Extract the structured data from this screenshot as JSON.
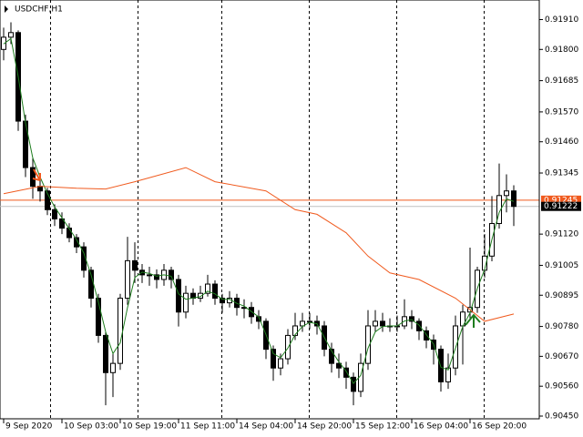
{
  "chart_data": {
    "type": "candlestick",
    "title": "USDCHF,H1",
    "ylim": [
      0.9044,
      0.91982
    ],
    "xlim": [
      -0.5,
      73.5
    ],
    "yticks": [
      {
        "value": 0.9191,
        "label": "0.91910"
      },
      {
        "value": 0.918,
        "label": "0.91800"
      },
      {
        "value": 0.91685,
        "label": "0.91685"
      },
      {
        "value": 0.9157,
        "label": "0.91570"
      },
      {
        "value": 0.9146,
        "label": "0.91460"
      },
      {
        "value": 0.91345,
        "label": "0.91345"
      },
      {
        "value": 0.9112,
        "label": "0.91120"
      },
      {
        "value": 0.91005,
        "label": "0.91005"
      },
      {
        "value": 0.90895,
        "label": "0.90895"
      },
      {
        "value": 0.9078,
        "label": "0.90780"
      },
      {
        "value": 0.9067,
        "label": "0.90670"
      },
      {
        "value": 0.9056,
        "label": "0.90560"
      },
      {
        "value": 0.9045,
        "label": "0.90450"
      }
    ],
    "xticks": [
      {
        "value": 0,
        "label": "9 Sep 2020"
      },
      {
        "value": 8,
        "label": "10 Sep 03:00"
      },
      {
        "value": 16,
        "label": "10 Sep 19:00"
      },
      {
        "value": 24,
        "label": "11 Sep 11:00"
      },
      {
        "value": 32,
        "label": "14 Sep 04:00"
      },
      {
        "value": 40,
        "label": "14 Sep 20:00"
      },
      {
        "value": 48,
        "label": "15 Sep 12:00"
      },
      {
        "value": 56,
        "label": "16 Sep 04:00"
      },
      {
        "value": 64,
        "label": "16 Sep 20:00"
      }
    ],
    "price_lines": [
      {
        "value": 0.91245,
        "color": "#f05a1e"
      },
      {
        "value": 0.91222,
        "color": "#c0c0c0"
      }
    ],
    "ohlc": [
      [
        0.918,
        0.9188,
        0.9176,
        0.91845
      ],
      [
        0.91845,
        0.919,
        0.9182,
        0.91862
      ],
      [
        0.91862,
        0.9187,
        0.915,
        0.91536
      ],
      [
        0.91536,
        0.9156,
        0.9133,
        0.91365
      ],
      [
        0.91365,
        0.914,
        0.9125,
        0.91296
      ],
      [
        0.91296,
        0.9133,
        0.9124,
        0.91279
      ],
      [
        0.91279,
        0.9129,
        0.9119,
        0.9121
      ],
      [
        0.9121,
        0.9123,
        0.9115,
        0.91176
      ],
      [
        0.91176,
        0.912,
        0.9112,
        0.91142
      ],
      [
        0.91142,
        0.9116,
        0.9109,
        0.91107
      ],
      [
        0.91107,
        0.9112,
        0.9105,
        0.91073
      ],
      [
        0.91073,
        0.9109,
        0.9096,
        0.90987
      ],
      [
        0.90987,
        0.91,
        0.9085,
        0.90884
      ],
      [
        0.90884,
        0.909,
        0.9072,
        0.90747
      ],
      [
        0.90747,
        0.9076,
        0.9049,
        0.9061
      ],
      [
        0.9061,
        0.9068,
        0.9052,
        0.90644
      ],
      [
        0.90644,
        0.909,
        0.9062,
        0.90884
      ],
      [
        0.90884,
        0.9111,
        0.9086,
        0.91022
      ],
      [
        0.91022,
        0.9109,
        0.9094,
        0.90987
      ],
      [
        0.90987,
        0.9101,
        0.9094,
        0.9097
      ],
      [
        0.9097,
        0.91,
        0.9093,
        0.9097
      ],
      [
        0.9097,
        0.9099,
        0.9092,
        0.90953
      ],
      [
        0.90953,
        0.9101,
        0.9093,
        0.90987
      ],
      [
        0.90987,
        0.91,
        0.9092,
        0.90953
      ],
      [
        0.90953,
        0.9097,
        0.9078,
        0.90833
      ],
      [
        0.90833,
        0.9093,
        0.9081,
        0.90902
      ],
      [
        0.90902,
        0.9092,
        0.9086,
        0.90884
      ],
      [
        0.90884,
        0.9093,
        0.9087,
        0.90902
      ],
      [
        0.90902,
        0.9097,
        0.9089,
        0.90936
      ],
      [
        0.90936,
        0.9095,
        0.9086,
        0.90884
      ],
      [
        0.90884,
        0.909,
        0.9083,
        0.90867
      ],
      [
        0.90867,
        0.9091,
        0.9085,
        0.90884
      ],
      [
        0.90884,
        0.909,
        0.9082,
        0.9085
      ],
      [
        0.9085,
        0.9088,
        0.9081,
        0.9085
      ],
      [
        0.9085,
        0.9087,
        0.9079,
        0.90816
      ],
      [
        0.90816,
        0.9084,
        0.9077,
        0.90799
      ],
      [
        0.90799,
        0.9081,
        0.9066,
        0.90696
      ],
      [
        0.90696,
        0.9071,
        0.9058,
        0.90627
      ],
      [
        0.90627,
        0.9068,
        0.906,
        0.90661
      ],
      [
        0.90661,
        0.9077,
        0.9064,
        0.90747
      ],
      [
        0.90747,
        0.9083,
        0.9073,
        0.90782
      ],
      [
        0.90782,
        0.9083,
        0.9076,
        0.90799
      ],
      [
        0.90799,
        0.9083,
        0.9077,
        0.90799
      ],
      [
        0.90799,
        0.9082,
        0.9075,
        0.90782
      ],
      [
        0.90782,
        0.908,
        0.9067,
        0.90696
      ],
      [
        0.90696,
        0.9072,
        0.9061,
        0.90644
      ],
      [
        0.90644,
        0.9068,
        0.9059,
        0.90627
      ],
      [
        0.90627,
        0.9065,
        0.9055,
        0.90593
      ],
      [
        0.90593,
        0.9061,
        0.9049,
        0.90541
      ],
      [
        0.90541,
        0.9068,
        0.9052,
        0.90644
      ],
      [
        0.90644,
        0.9084,
        0.9062,
        0.90782
      ],
      [
        0.90782,
        0.9084,
        0.9076,
        0.90799
      ],
      [
        0.90799,
        0.9083,
        0.9076,
        0.90782
      ],
      [
        0.90782,
        0.9081,
        0.9076,
        0.90782
      ],
      [
        0.90782,
        0.9082,
        0.9076,
        0.90782
      ],
      [
        0.90782,
        0.9088,
        0.9077,
        0.90816
      ],
      [
        0.90816,
        0.9084,
        0.9077,
        0.90799
      ],
      [
        0.90799,
        0.9081,
        0.9073,
        0.90764
      ],
      [
        0.90764,
        0.9078,
        0.907,
        0.9073
      ],
      [
        0.9073,
        0.9075,
        0.9064,
        0.90696
      ],
      [
        0.90696,
        0.9071,
        0.9054,
        0.90576
      ],
      [
        0.90576,
        0.9068,
        0.9055,
        0.90627
      ],
      [
        0.90627,
        0.9082,
        0.906,
        0.90782
      ],
      [
        0.90782,
        0.9086,
        0.9064,
        0.90833
      ],
      [
        0.90833,
        0.9107,
        0.9081,
        0.9085
      ],
      [
        0.9085,
        0.91,
        0.9083,
        0.90987
      ],
      [
        0.90987,
        0.9112,
        0.9096,
        0.91039
      ],
      [
        0.91039,
        0.9126,
        0.9102,
        0.91159
      ],
      [
        0.91159,
        0.9138,
        0.9114,
        0.91262
      ],
      [
        0.91262,
        0.9134,
        0.912,
        0.91279
      ],
      [
        0.91279,
        0.913,
        0.9115,
        0.91222
      ]
    ],
    "lines": [
      {
        "color": "#1e7d1e",
        "values": [
          0.9182,
          0.9184,
          0.917,
          0.9153,
          0.914,
          0.9133,
          0.9127,
          0.9122,
          0.9118,
          0.9114,
          0.911,
          0.9105,
          0.9097,
          0.9087,
          0.9076,
          0.9068,
          0.9072,
          0.9085,
          0.9096,
          0.9098,
          0.90975,
          0.90965,
          0.9097,
          0.90965,
          0.909,
          0.9088,
          0.90885,
          0.9089,
          0.9091,
          0.909,
          0.9088,
          0.9088,
          0.90865,
          0.90855,
          0.90835,
          0.90815,
          0.9075,
          0.9068,
          0.90665,
          0.907,
          0.9075,
          0.9078,
          0.90795,
          0.9079,
          0.9074,
          0.9069,
          0.9065,
          0.90615,
          0.9057,
          0.906,
          0.907,
          0.9076,
          0.9078,
          0.90782,
          0.90782,
          0.908,
          0.90805,
          0.90785,
          0.9075,
          0.90715,
          0.9063,
          0.9062,
          0.907,
          0.9078,
          0.9083,
          0.9092,
          0.9099,
          0.911,
          0.912,
          0.9125,
          0.9124
        ]
      },
      {
        "color": "#f05a1e",
        "x": [
          0,
          5,
          10,
          14,
          18,
          25,
          29,
          36,
          40,
          43,
          47,
          50,
          53,
          57,
          62,
          66,
          70
        ],
        "values": [
          0.91269,
          0.91296,
          0.91289,
          0.91286,
          0.91313,
          0.91365,
          0.91313,
          0.91279,
          0.9121,
          0.91193,
          0.91125,
          0.91039,
          0.90977,
          0.90953,
          0.90884,
          0.90799,
          0.90826
        ]
      }
    ]
  }
}
